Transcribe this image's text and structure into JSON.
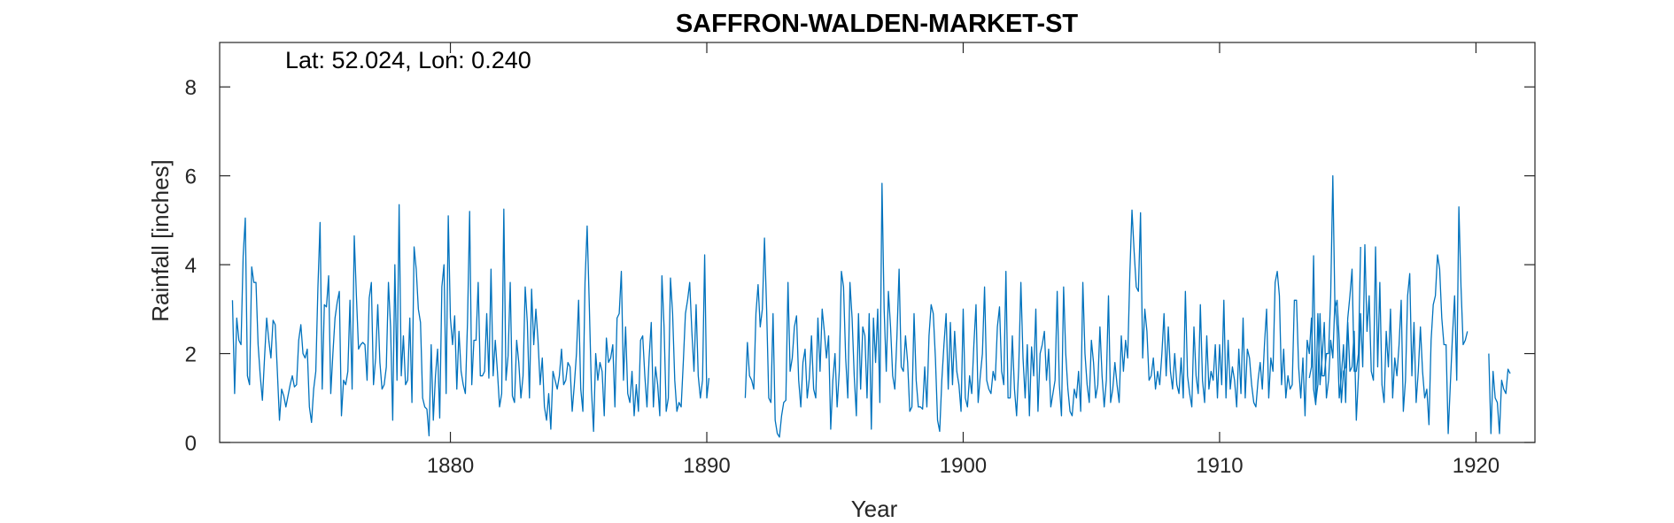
{
  "chart_data": {
    "type": "line",
    "title": "SAFFRON-WALDEN-MARKET-ST",
    "annotation": "Lat: 52.024, Lon: 0.240",
    "xlabel": "Year",
    "ylabel": "Rainfall [inches]",
    "xlim": [
      1871,
      1922.3
    ],
    "ylim": [
      0,
      9
    ],
    "xticks": [
      1880,
      1890,
      1900,
      1910,
      1920
    ],
    "yticks": [
      0,
      2,
      4,
      6,
      8
    ],
    "grid": false,
    "line_color": "#0072bd",
    "series": [
      {
        "segments": [
          {
            "start": 1871.5,
            "step": 0.0833333,
            "values": [
              3.2,
              1.1,
              2.8,
              2.3,
              2.2,
              4.2,
              5.05,
              1.5,
              1.3,
              3.95,
              3.6,
              3.6,
              2.2,
              1.5,
              0.95,
              1.9,
              2.8,
              2.3,
              1.9,
              2.75,
              2.65,
              1.6,
              0.5,
              1.2,
              1.05,
              0.8,
              1.05,
              1.3,
              1.5,
              1.25,
              1.3,
              2.3,
              2.65,
              2.0,
              1.9,
              2.1,
              0.8,
              0.45,
              1.2,
              1.6,
              3.5,
              4.95,
              1.2,
              3.1,
              3.05,
              3.75,
              1.1,
              2.0,
              2.8,
              3.15,
              3.4,
              0.6,
              1.4,
              1.3,
              1.6,
              3.2,
              1.2,
              4.65,
              3.3,
              2.1,
              2.2,
              2.25,
              2.2,
              1.4,
              3.25,
              3.6,
              1.3,
              1.9,
              3.1,
              1.8,
              1.2,
              1.3,
              1.7,
              3.6,
              2.6,
              0.5,
              4.0,
              1.4,
              5.35,
              1.5,
              2.4,
              1.3,
              1.4,
              2.8,
              0.9,
              4.4,
              3.9,
              3.0,
              2.7,
              1.0,
              0.8,
              0.75,
              0.15,
              2.2,
              0.5,
              1.5,
              2.1,
              0.55,
              3.5,
              4.0,
              1.1,
              5.1,
              2.8,
              2.2,
              2.85,
              1.2,
              2.5,
              1.6,
              1.3,
              1.1,
              2.7,
              5.2,
              1.3,
              2.3,
              2.3,
              3.6,
              1.5,
              1.5,
              1.6,
              2.9,
              1.45,
              3.9,
              1.5,
              2.3,
              1.6,
              0.8,
              1.1,
              5.25,
              1.4,
              1.95,
              3.6,
              1.05,
              0.9,
              2.3,
              1.8,
              1.0,
              1.5,
              3.5,
              2.7,
              1.0,
              3.45,
              2.2,
              3.0,
              2.3,
              1.3,
              1.9,
              0.8,
              0.5,
              1.1,
              0.3,
              1.6,
              1.4,
              1.2,
              1.5,
              2.1,
              1.3,
              1.4,
              1.8,
              1.7,
              0.7,
              1.3,
              2.0,
              3.2,
              1.2,
              0.7,
              3.6,
              4.87,
              3.1,
              1.2,
              0.25,
              2.0,
              1.4,
              1.8,
              1.6,
              0.6,
              2.35,
              1.8,
              1.9,
              2.2,
              0.8,
              2.8,
              2.9,
              3.85,
              1.4,
              2.6,
              1.1,
              0.9,
              1.6,
              0.6,
              1.3,
              0.7,
              2.3,
              2.4,
              1.5,
              0.8,
              1.9,
              2.7,
              0.8,
              1.7,
              1.3,
              0.6,
              3.75,
              2.6,
              0.7,
              1.0,
              3.7,
              2.9,
              1.4,
              0.7,
              0.9,
              0.8,
              1.8,
              2.9,
              3.2,
              3.6,
              2.5,
              1.6,
              3.1,
              1.5,
              1.0,
              1.4,
              4.22,
              1.0,
              1.45
            ]
          },
          {
            "start": 1891.5,
            "step": 0.0833333,
            "values": [
              1.0,
              2.25,
              1.5,
              1.4,
              1.2,
              2.9,
              3.55,
              2.6,
              3.0,
              4.6,
              3.0,
              1.0,
              0.9,
              2.9,
              0.5,
              0.2,
              0.12,
              0.6,
              0.9,
              0.95,
              3.6,
              1.6,
              1.9,
              2.6,
              2.85,
              1.4,
              0.8,
              1.8,
              2.1,
              1.0,
              1.45,
              2.4,
              1.2,
              1.0,
              2.8,
              1.6,
              3.0,
              2.5,
              1.9,
              2.4,
              0.3,
              1.4,
              2.0,
              0.8,
              1.6,
              3.85,
              3.5,
              1.9,
              1.0,
              3.6,
              2.8,
              1.5,
              0.6,
              2.9,
              1.2,
              2.6,
              2.4,
              1.0,
              2.9,
              0.3,
              2.8,
              1.8,
              3.0,
              0.9,
              5.83,
              3.0,
              1.6,
              3.4,
              2.6,
              1.5,
              1.2,
              2.4,
              3.9,
              1.7,
              1.6,
              2.4,
              1.8,
              0.7,
              0.8,
              2.9,
              1.4,
              0.8,
              0.8,
              0.75,
              1.7,
              0.8,
              2.4,
              3.1,
              2.9,
              1.9,
              0.5,
              0.25,
              1.4,
              2.2,
              2.9,
              1.2,
              2.7,
              1.3,
              2.5,
              1.6,
              1.3,
              0.7,
              3.0,
              1.0,
              0.8,
              1.5,
              1.1,
              2.2,
              3.1,
              0.9,
              1.5,
              2.0,
              3.5,
              1.4,
              1.2,
              1.1,
              1.6,
              1.4,
              2.6,
              3.05,
              1.6,
              1.3,
              3.85,
              1.0,
              1.0,
              2.4,
              1.2,
              0.6,
              1.7,
              3.6,
              1.9,
              1.0,
              2.2,
              0.6,
              2.15,
              1.5,
              3.0,
              0.7,
              2.0,
              2.2,
              2.5,
              1.4,
              2.1,
              0.8,
              1.1,
              1.4,
              3.4,
              1.3,
              0.6,
              3.5,
              2.0,
              1.2,
              0.7,
              0.6,
              1.2,
              1.0,
              1.6,
              0.7,
              3.6,
              2.0,
              1.3,
              0.9,
              2.3,
              1.8,
              1.0,
              1.3,
              2.6,
              1.5,
              0.8,
              1.4,
              3.3,
              0.9,
              1.2,
              1.8,
              1.3,
              0.9,
              2.4,
              1.6,
              2.3,
              1.9,
              3.8,
              5.23,
              4.3,
              3.5,
              3.4,
              5.17,
              1.9,
              3.0,
              2.5,
              1.4,
              1.5,
              1.9,
              1.2,
              1.6,
              1.3,
              2.0,
              2.9,
              1.5,
              2.6,
              1.6,
              1.2,
              2.0,
              1.3,
              1.1,
              1.9,
              1.0,
              3.4,
              1.5,
              1.1,
              0.8,
              2.6,
              1.5,
              1.1,
              3.1,
              1.4,
              0.9,
              2.4,
              1.2,
              1.6,
              1.4,
              2.2,
              1.0,
              2.2,
              1.3,
              3.2,
              1.0,
              2.3,
              1.2,
              1.7,
              1.4,
              0.8,
              2.1,
              1.1,
              2.8,
              1.0,
              2.1,
              1.9,
              1.3,
              0.9,
              0.8,
              1.4,
              1.8,
              1.2,
              2.2,
              3.0,
              1.0,
              1.9,
              1.6,
              3.6,
              3.85,
              3.3,
              1.3,
              2.1,
              1.0,
              1.5,
              1.2,
              1.3,
              3.2,
              3.2,
              1.7,
              1.0,
              1.9,
              0.6,
              2.3,
              2.0,
              2.8,
              1.2,
              0.85,
              2.9,
              1.3,
              1.9,
              2.7,
              1.0,
              1.4,
              2.3,
              1.9,
              3.2,
              2.6,
              1.0,
              1.5,
              2.2,
              0.9,
              2.7,
              1.6,
              1.7,
              2.5,
              0.5,
              1.5,
              2.9,
              1.7,
              4.45,
              2.5,
              3.3,
              1.6,
              1.4,
              4.4,
              1.7,
              3.6,
              1.3,
              0.9,
              2.5,
              1.7,
              3.0,
              1.0,
              1.9,
              1.5,
              2.2,
              3.2,
              0.7,
              1.4,
              3.3,
              3.8,
              1.5,
              2.7,
              0.9,
              1.6,
              2.6,
              1.6,
              1.0,
              1.2,
              0.4,
              2.3,
              3.1,
              3.3,
              4.22,
              3.9,
              2.8,
              2.2,
              2.2,
              0.2,
              1.3,
              2.4,
              3.3,
              1.4,
              5.3,
              3.5,
              2.2,
              2.3,
              2.5
            ]
          },
          {
            "start": 1913.5,
            "step": 0.0833333,
            "values": [
              1.45,
              1.7,
              4.2,
              0.9,
              1.3,
              2.9,
              1.5,
              1.5,
              2.0,
              2.0,
              3.3,
              6.0,
              3.0,
              3.2,
              2.3,
              0.9,
              1.6,
              1.7,
              2.8,
              3.3,
              3.9,
              1.6,
              1.6,
              2.0,
              4.4
            ]
          },
          {
            "start": 1920.5,
            "step": 0.0833333,
            "values": [
              2.0,
              0.2,
              1.6,
              1.0,
              0.9,
              0.2,
              1.4,
              1.2,
              1.1,
              1.65,
              1.55
            ]
          }
        ]
      }
    ]
  }
}
